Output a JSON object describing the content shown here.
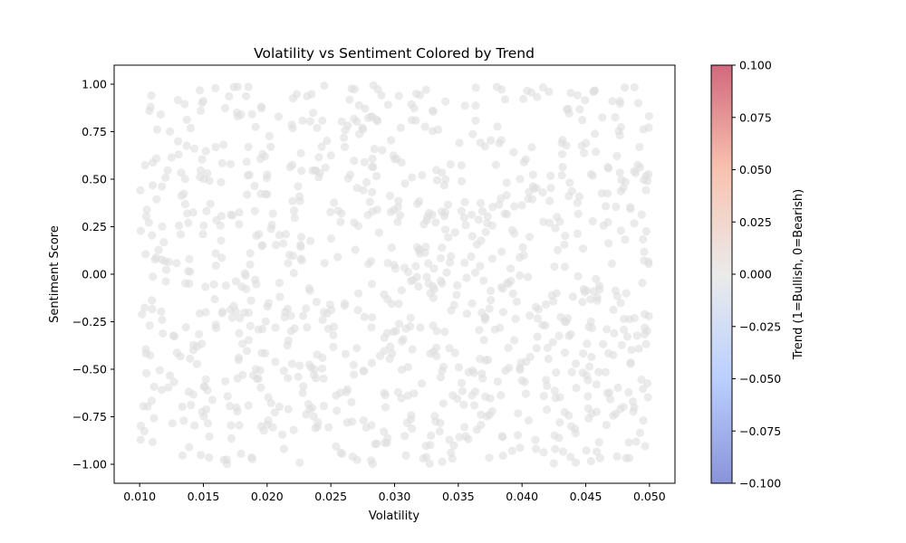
{
  "chart_data": {
    "type": "scatter",
    "title": "Volatility vs Sentiment Colored by Trend",
    "xlabel": "Volatility",
    "ylabel": "Sentiment Score",
    "xlim": [
      0.008,
      0.052
    ],
    "ylim": [
      -1.1,
      1.1
    ],
    "x_ticks": [
      0.01,
      0.015,
      0.02,
      0.025,
      0.03,
      0.035,
      0.04,
      0.045,
      0.05
    ],
    "x_tick_labels": [
      "0.010",
      "0.015",
      "0.020",
      "0.025",
      "0.030",
      "0.035",
      "0.040",
      "0.045",
      "0.050"
    ],
    "y_ticks": [
      1.0,
      0.75,
      0.5,
      0.25,
      0.0,
      -0.25,
      -0.5,
      -0.75,
      -1.0
    ],
    "y_tick_labels": [
      "1.00",
      "0.75",
      "0.50",
      "0.25",
      "0.00",
      "−0.25",
      "−0.50",
      "−0.75",
      "−1.00"
    ],
    "grid": false,
    "point_color": "#dddddd",
    "point_opacity": 0.6,
    "point_count": 1000,
    "x_range_of_points": [
      0.01,
      0.05
    ],
    "y_range_of_points": [
      -1.0,
      1.0
    ],
    "colorbar": {
      "label": "Trend (1=Bullish, 0=Bearish)",
      "range": [
        -0.1,
        0.1
      ],
      "ticks": [
        0.1,
        0.075,
        0.05,
        0.025,
        0.0,
        -0.025,
        -0.05,
        -0.075,
        -0.1
      ],
      "tick_labels": [
        "0.100",
        "0.075",
        "0.050",
        "0.025",
        "0.000",
        "−0.025",
        "−0.050",
        "−0.075",
        "−0.100"
      ],
      "colormap": "coolwarm",
      "colors": [
        "#3b4cc0",
        "#8db0fe",
        "#dddddd",
        "#f49a7b",
        "#b40426"
      ]
    }
  }
}
